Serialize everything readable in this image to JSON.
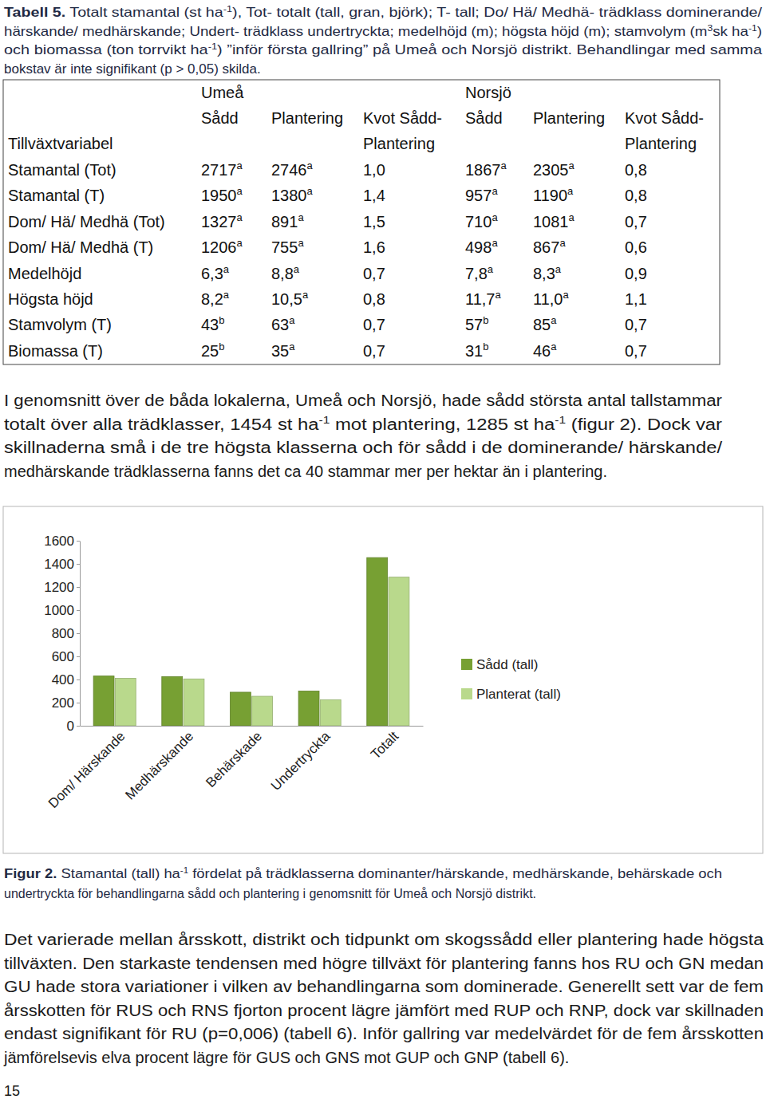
{
  "table_caption": [
    [
      {
        "b": "Tabell 5."
      },
      " Totalt stamantal (st ha",
      {
        "sup": "-1"
      },
      "), Tot- totalt (tall, gran, björk); T- tall; Do/ Hä/ Medhä- trädklass dominerande/"
    ],
    [
      "härskande/ medhärskande; Undert- trädklass undertryckta; medelhöjd (m); högsta höjd (m); stamvolym (m",
      {
        "sup": "3"
      },
      "sk ha",
      {
        "sup": "-1"
      },
      ")"
    ],
    [
      "och biomassa (ton torrvikt ha",
      {
        "sup": "-1"
      },
      ") ”inför första gallring” på Umeå och Norsjö distrikt. Behandlingar med samma"
    ],
    [
      "bokstav är inte signifikant (p > 0,05) skilda."
    ]
  ],
  "table": {
    "row_header": "Tillväxtvariabel",
    "groups": [
      "Umeå",
      "Norsjö"
    ],
    "columns": [
      [
        "Sådd"
      ],
      [
        "Plantering"
      ],
      [
        "Kvot Sådd-",
        "Plantering"
      ],
      [
        "Sådd"
      ],
      [
        "Plantering"
      ],
      [
        "Kvot Sådd-",
        "Plantering"
      ]
    ],
    "rows": [
      {
        "label": "Stamantal (Tot)",
        "cells": [
          {
            "text": "2717",
            "sup": "a"
          },
          {
            "text": "2746",
            "sup": "a"
          },
          {
            "text": "1,0"
          },
          {
            "text": "1867",
            "sup": "a"
          },
          {
            "text": "2305",
            "sup": "a"
          },
          {
            "text": "0,8"
          }
        ]
      },
      {
        "label": "Stamantal (T)",
        "cells": [
          {
            "text": "1950",
            "sup": "a"
          },
          {
            "text": "1380",
            "sup": "a"
          },
          {
            "text": "1,4"
          },
          {
            "text": "957",
            "sup": "a"
          },
          {
            "text": "1190",
            "sup": "a"
          },
          {
            "text": "0,8"
          }
        ]
      },
      {
        "label": "Dom/ Hä/ Medhä (Tot)",
        "cells": [
          {
            "text": "1327",
            "sup": "a"
          },
          {
            "text": "891",
            "sup": "a"
          },
          {
            "text": "1,5"
          },
          {
            "text": "710",
            "sup": "a"
          },
          {
            "text": "1081",
            "sup": "a"
          },
          {
            "text": "0,7"
          }
        ]
      },
      {
        "label": "Dom/ Hä/ Medhä (T)",
        "cells": [
          {
            "text": "1206",
            "sup": "a"
          },
          {
            "text": "755",
            "sup": "a"
          },
          {
            "text": "1,6"
          },
          {
            "text": "498",
            "sup": "a"
          },
          {
            "text": "867",
            "sup": "a"
          },
          {
            "text": "0,6"
          }
        ]
      },
      {
        "label": "Medelhöjd",
        "cells": [
          {
            "text": "6,3",
            "sup": "a"
          },
          {
            "text": "8,8",
            "sup": "a"
          },
          {
            "text": "0,7"
          },
          {
            "text": "7,8",
            "sup": "a"
          },
          {
            "text": "8,3",
            "sup": "a"
          },
          {
            "text": "0,9"
          }
        ]
      },
      {
        "label": "Högsta höjd",
        "cells": [
          {
            "text": "8,2",
            "sup": "a"
          },
          {
            "text": "10,5",
            "sup": "a"
          },
          {
            "text": "0,8"
          },
          {
            "text": "11,7",
            "sup": "a"
          },
          {
            "text": "11,0",
            "sup": "a"
          },
          {
            "text": "1,1"
          }
        ]
      },
      {
        "label": "Stamvolym (T)",
        "cells": [
          {
            "text": "43",
            "sup": "b"
          },
          {
            "text": "63",
            "sup": "a"
          },
          {
            "text": "0,7"
          },
          {
            "text": "57",
            "sup": "b"
          },
          {
            "text": "85",
            "sup": "a"
          },
          {
            "text": "0,7"
          }
        ]
      },
      {
        "label": "Biomassa (T)",
        "cells": [
          {
            "text": "25",
            "sup": "b"
          },
          {
            "text": "35",
            "sup": "a"
          },
          {
            "text": "0,7"
          },
          {
            "text": "31",
            "sup": "b"
          },
          {
            "text": "46",
            "sup": "a"
          },
          {
            "text": "0,7"
          }
        ]
      }
    ]
  },
  "paragraph_1": [
    [
      "I genomsnitt över de båda lokalerna, Umeå och Norsjö, hade sådd största antal tallstammar"
    ],
    [
      "totalt över alla trädklasser, 1454 st ha",
      {
        "sup": "-1"
      },
      " mot plantering, 1285 st ha",
      {
        "sup": "-1"
      },
      " (figur 2). Dock var"
    ],
    [
      "skillnaderna små i de tre högsta klasserna och för sådd i de dominerande/ härskande/"
    ],
    [
      "medhärskande trädklasserna fanns det ca 40 stammar mer per hektar än i plantering."
    ]
  ],
  "chart_data": {
    "type": "bar",
    "categories": [
      "Dom/ Härskande",
      "Medhärskande",
      "Behärskade",
      "Undertryckta",
      "Totalt"
    ],
    "series": [
      {
        "name": "Sådd (tall)",
        "color": "#77a033",
        "values": [
          430,
          425,
          290,
          300,
          1454
        ]
      },
      {
        "name": "Planterat (tall)",
        "color": "#b9d98c",
        "values": [
          410,
          405,
          255,
          225,
          1285
        ]
      }
    ],
    "ylim": [
      0,
      1600
    ],
    "yticks": [
      0,
      200,
      400,
      600,
      800,
      1000,
      1200,
      1400,
      1600
    ],
    "legend": "right",
    "grid": false
  },
  "figure_caption": [
    [
      {
        "b": "Figur 2."
      },
      " Stamantal (tall) ha",
      {
        "sup": "-1"
      },
      " fördelat på trädklasserna dominanter/härskande, medhärskande, behärskade och"
    ],
    [
      "undertryckta för behandlingarna sådd och plantering i genomsnitt för Umeå och Norsjö distrikt."
    ]
  ],
  "paragraph_2": [
    [
      "Det varierade mellan årsskott, distrikt och tidpunkt om skogssådd eller plantering hade högsta"
    ],
    [
      "tillväxten. Den starkaste tendensen med högre tillväxt för plantering fanns hos RU och GN medan"
    ],
    [
      "GU hade stora variationer i vilken av behandlingarna som dominerade. Generellt sett var de fem"
    ],
    [
      "årsskotten för RUS och RNS fjorton procent lägre jämfört med RUP och RNP, dock var skillnaden"
    ],
    [
      "endast signifikant för RU (p=0,006) (tabell 6). Inför gallring var medelvärdet för de fem årsskotten"
    ],
    [
      "jämförelsevis elva procent lägre för GUS och GNS mot GUP och GNP (tabell 6)."
    ]
  ],
  "page_number": "15"
}
